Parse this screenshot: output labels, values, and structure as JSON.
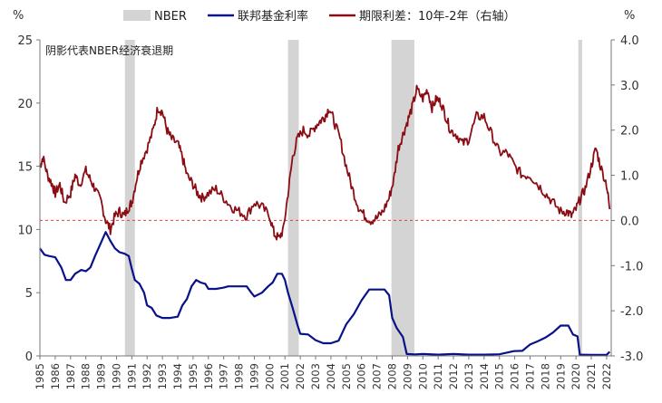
{
  "chart_data": {
    "type": "line",
    "title": "",
    "note": "阴影代表NBER经济衰退期",
    "left_axis": {
      "unit": "%",
      "range": [
        0,
        25
      ],
      "ticks": [
        "0",
        "5",
        "10",
        "15",
        "20",
        "25"
      ]
    },
    "right_axis": {
      "unit": "%",
      "range": [
        -3.0,
        4.0
      ],
      "ticks": [
        "-3.0",
        "-2.0",
        "-1.0",
        "0.0",
        "1.0",
        "2.0",
        "3.0",
        "4.0"
      ]
    },
    "x_range": [
      1985,
      2022.3
    ],
    "x_tick_labels": [
      "1985",
      "1986",
      "1987",
      "1988",
      "1989",
      "1990",
      "1991",
      "1992",
      "1993",
      "1994",
      "1995",
      "1996",
      "1997",
      "1998",
      "1999",
      "2000",
      "2001",
      "2002",
      "2003",
      "2004",
      "2005",
      "2006",
      "2007",
      "2008",
      "2009",
      "2010",
      "2011",
      "2012",
      "2013",
      "2014",
      "2015",
      "2016",
      "2017",
      "2018",
      "2019",
      "2020",
      "2021",
      "2022"
    ],
    "legend": {
      "nber": "NBER",
      "fed": "联邦基金利率",
      "spread": "期限利差：10年-2年（右轴）"
    },
    "colors": {
      "fed": "#0a128a",
      "spread": "#8b0d14",
      "nber": "#d4d4d4",
      "zero_line": "#e04040",
      "axis": "#777777"
    },
    "recessions": [
      [
        1990.55,
        1991.2
      ],
      [
        2001.2,
        2001.9
      ],
      [
        2007.95,
        2009.45
      ],
      [
        2020.15,
        2020.4
      ]
    ],
    "series": [
      {
        "name": "联邦基金利率",
        "axis": "left",
        "x": [
          1985.0,
          1985.3,
          1985.6,
          1986.0,
          1986.4,
          1986.7,
          1987.0,
          1987.3,
          1987.7,
          1988.0,
          1988.3,
          1988.6,
          1989.0,
          1989.3,
          1989.6,
          1989.9,
          1990.2,
          1990.5,
          1990.8,
          1991.0,
          1991.2,
          1991.5,
          1991.8,
          1992.0,
          1992.3,
          1992.6,
          1993.0,
          1993.5,
          1994.0,
          1994.3,
          1994.6,
          1994.9,
          1995.2,
          1995.5,
          1995.8,
          1996.0,
          1996.5,
          1997.0,
          1997.3,
          1997.6,
          1998.0,
          1998.5,
          1998.8,
          1999.0,
          1999.5,
          1999.9,
          2000.2,
          2000.5,
          2000.8,
          2001.0,
          2001.2,
          2001.5,
          2001.8,
          2002.0,
          2002.5,
          2003.0,
          2003.5,
          2004.0,
          2004.5,
          2005.0,
          2005.5,
          2006.0,
          2006.5,
          2007.0,
          2007.5,
          2007.8,
          2008.0,
          2008.3,
          2008.7,
          2008.95,
          2009.5,
          2010.0,
          2011.0,
          2012.0,
          2013.0,
          2014.0,
          2015.0,
          2015.95,
          2016.5,
          2017.0,
          2017.5,
          2018.0,
          2018.5,
          2019.0,
          2019.5,
          2019.8,
          2020.1,
          2020.25,
          2021.0,
          2022.0,
          2022.2
        ],
        "y": [
          8.5,
          8.0,
          7.9,
          7.8,
          7.0,
          6.0,
          6.0,
          6.5,
          6.8,
          6.7,
          7.0,
          7.9,
          9.0,
          9.8,
          9.1,
          8.5,
          8.2,
          8.1,
          7.9,
          6.9,
          6.0,
          5.7,
          5.0,
          4.0,
          3.8,
          3.2,
          3.0,
          3.0,
          3.1,
          4.0,
          4.5,
          5.5,
          6.0,
          5.8,
          5.7,
          5.3,
          5.3,
          5.4,
          5.5,
          5.5,
          5.5,
          5.5,
          5.0,
          4.7,
          5.0,
          5.5,
          5.8,
          6.5,
          6.5,
          6.0,
          5.0,
          3.8,
          2.5,
          1.75,
          1.7,
          1.25,
          1.0,
          1.0,
          1.2,
          2.5,
          3.3,
          4.4,
          5.25,
          5.25,
          5.25,
          4.8,
          3.0,
          2.2,
          1.5,
          0.15,
          0.12,
          0.15,
          0.1,
          0.15,
          0.1,
          0.1,
          0.13,
          0.38,
          0.4,
          0.9,
          1.15,
          1.45,
          1.85,
          2.4,
          2.4,
          1.7,
          1.55,
          0.1,
          0.08,
          0.08,
          0.33
        ]
      },
      {
        "name": "期限利差：10年-2年（右轴）",
        "axis": "right",
        "x": [
          1985.0,
          1985.2,
          1985.5,
          1985.8,
          1986.0,
          1986.3,
          1986.6,
          1987.0,
          1987.3,
          1987.6,
          1988.0,
          1988.3,
          1988.6,
          1989.0,
          1989.3,
          1989.6,
          1989.9,
          1990.2,
          1990.5,
          1990.8,
          1991.0,
          1991.3,
          1991.6,
          1992.0,
          1992.4,
          1992.7,
          1993.0,
          1993.3,
          1993.6,
          1994.0,
          1994.3,
          1994.6,
          1995.0,
          1995.3,
          1995.6,
          1996.0,
          1996.5,
          1997.0,
          1997.5,
          1998.0,
          1998.5,
          1999.0,
          1999.5,
          2000.0,
          2000.3,
          2000.6,
          2000.9,
          2001.2,
          2001.5,
          2001.8,
          2002.2,
          2002.6,
          2003.0,
          2003.3,
          2003.6,
          2003.9,
          2004.2,
          2004.6,
          2005.0,
          2005.4,
          2005.8,
          2006.2,
          2006.6,
          2007.0,
          2007.4,
          2007.8,
          2008.1,
          2008.4,
          2008.7,
          2009.0,
          2009.3,
          2009.6,
          2010.0,
          2010.3,
          2010.6,
          2010.9,
          2011.2,
          2011.5,
          2011.8,
          2012.2,
          2012.6,
          2013.0,
          2013.5,
          2014.0,
          2014.5,
          2015.0,
          2015.5,
          2016.0,
          2016.5,
          2017.0,
          2017.5,
          2018.0,
          2018.5,
          2019.0,
          2019.4,
          2019.7,
          2020.0,
          2020.3,
          2020.6,
          2021.0,
          2021.3,
          2021.6,
          2022.0,
          2022.2
        ],
        "y": [
          1.2,
          1.4,
          1.0,
          0.8,
          0.6,
          0.8,
          0.4,
          0.6,
          1.0,
          0.8,
          1.1,
          0.9,
          0.7,
          0.4,
          0.0,
          -0.2,
          0.1,
          0.2,
          0.1,
          0.3,
          0.4,
          0.9,
          1.3,
          1.6,
          2.0,
          2.5,
          2.4,
          2.0,
          1.8,
          1.7,
          1.4,
          1.0,
          0.8,
          0.6,
          0.5,
          0.6,
          0.7,
          0.5,
          0.3,
          0.2,
          0.1,
          0.4,
          0.3,
          0.1,
          -0.3,
          -0.4,
          -0.2,
          0.6,
          1.4,
          1.8,
          2.0,
          1.9,
          2.1,
          2.2,
          2.3,
          2.5,
          2.2,
          1.8,
          1.2,
          0.7,
          0.3,
          0.1,
          0.0,
          0.05,
          0.2,
          0.5,
          0.9,
          1.6,
          1.9,
          2.2,
          2.5,
          2.9,
          2.7,
          2.9,
          2.5,
          2.7,
          2.6,
          2.3,
          2.0,
          1.9,
          1.7,
          1.8,
          2.3,
          2.3,
          1.9,
          1.5,
          1.5,
          1.2,
          1.0,
          1.0,
          0.8,
          0.6,
          0.4,
          0.2,
          0.2,
          0.1,
          0.25,
          0.5,
          0.7,
          1.2,
          1.6,
          1.2,
          0.8,
          0.25
        ]
      }
    ]
  }
}
